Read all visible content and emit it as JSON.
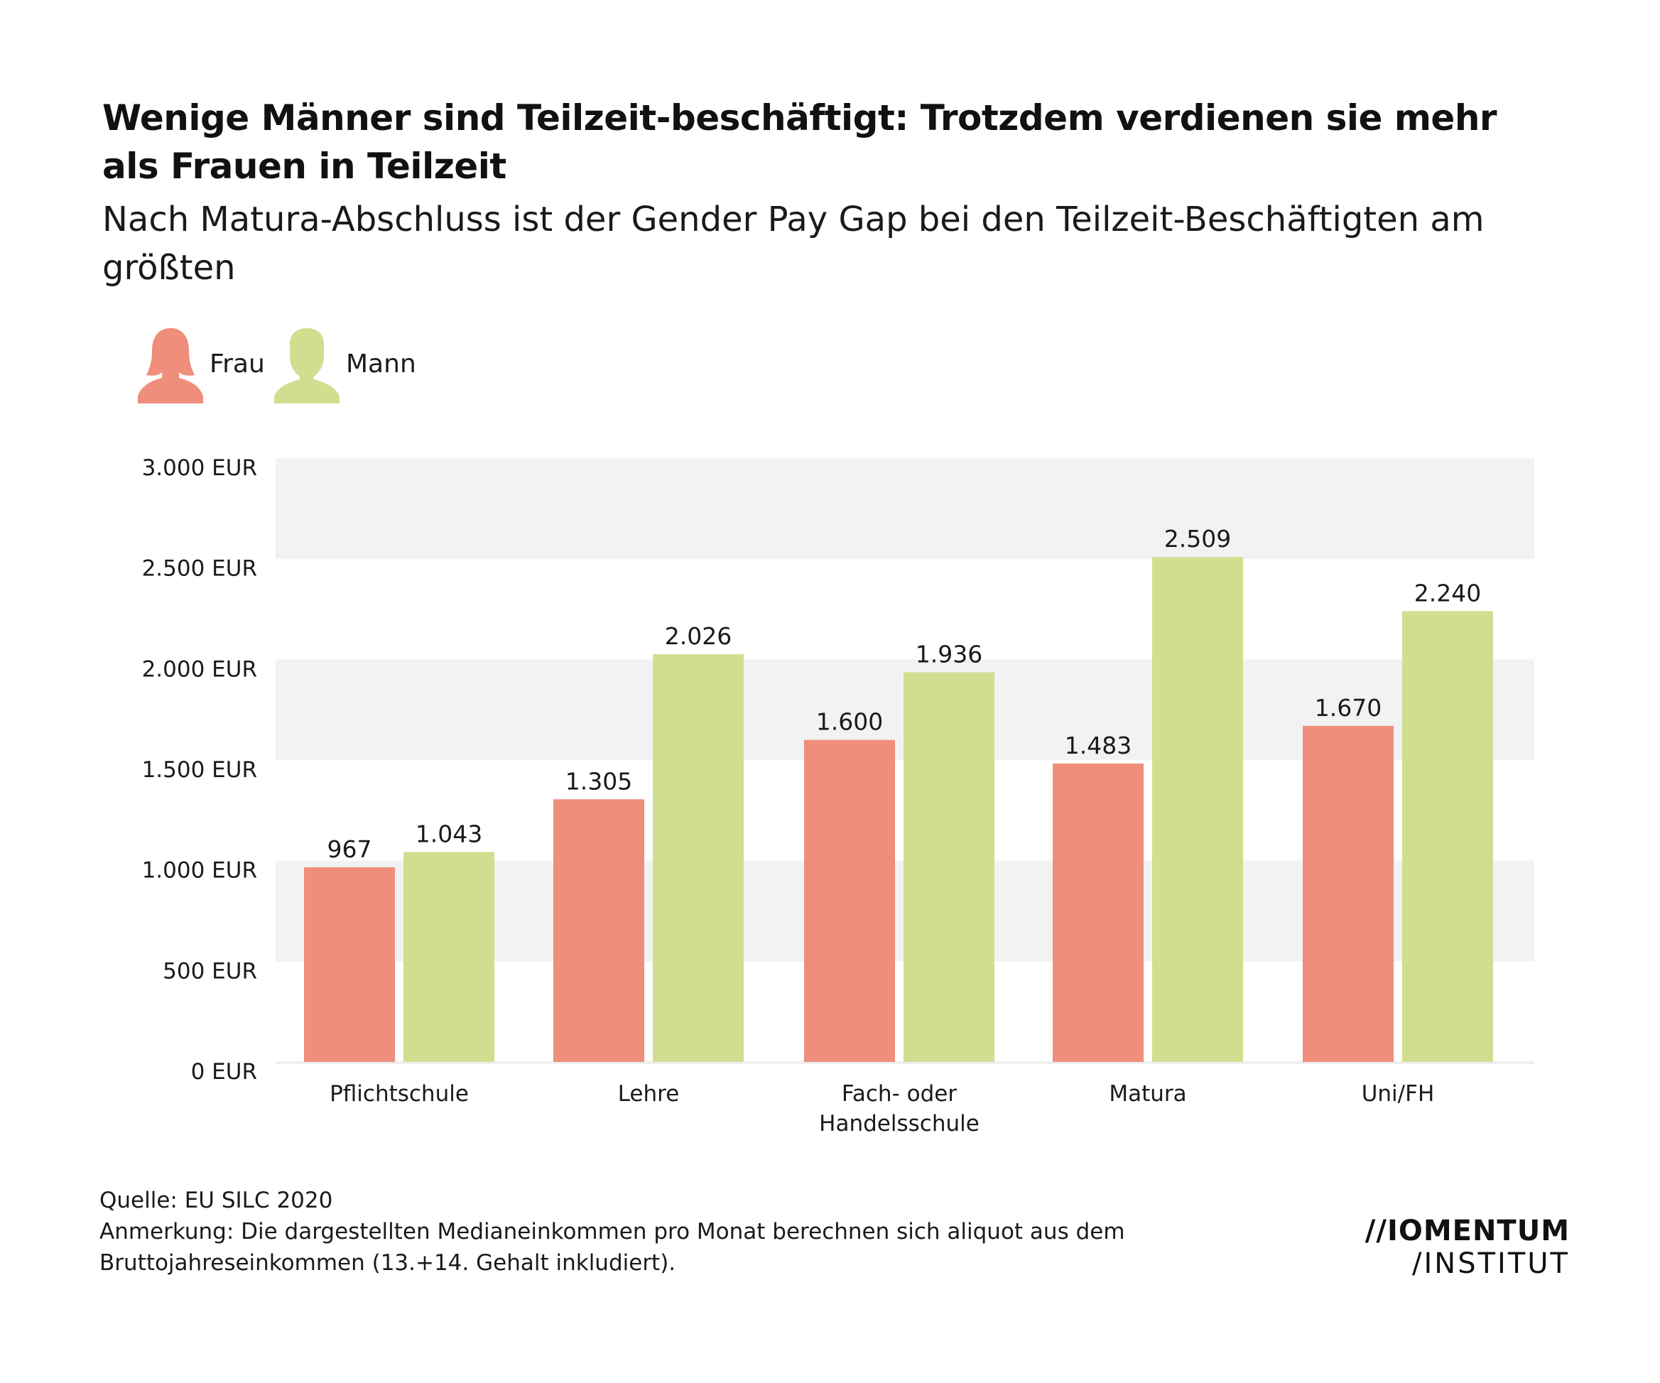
{
  "header": {
    "title": "Wenige Männer sind Teilzeit-beschäftigt: Trotzdem verdienen sie mehr als Frauen in Teilzeit",
    "subtitle": "Nach Matura-Abschluss ist der Gender Pay Gap bei den Teilzeit-Beschäftigten am größten"
  },
  "legend": {
    "items": [
      {
        "label": "Frau",
        "icon": "woman-icon",
        "color": "#EE8E7B"
      },
      {
        "label": "Mann",
        "icon": "man-icon",
        "color": "#D0DE90"
      }
    ]
  },
  "chart_data": {
    "type": "bar",
    "categories": [
      "Pflichtschule",
      "Lehre",
      "Fach- oder Handelsschule",
      "Matura",
      "Uni/FH"
    ],
    "category_lines": [
      [
        "Pflichtschule"
      ],
      [
        "Lehre"
      ],
      [
        "Fach- oder",
        "Handelsschule"
      ],
      [
        "Matura"
      ],
      [
        "Uni/FH"
      ]
    ],
    "series": [
      {
        "name": "Frau",
        "color": "#EE8E7B",
        "values": [
          967,
          1305,
          1600,
          1483,
          1670
        ],
        "labels": [
          "967",
          "1.305",
          "1.600",
          "1.483",
          "1.670"
        ]
      },
      {
        "name": "Mann",
        "color": "#D0DE90",
        "values": [
          1043,
          2026,
          1936,
          2509,
          2240
        ],
        "labels": [
          "1.043",
          "2.026",
          "1.936",
          "2.509",
          "2.240"
        ]
      }
    ],
    "ylim": [
      0,
      3000
    ],
    "yticks": [
      0,
      500,
      1000,
      1500,
      2000,
      2500,
      3000
    ],
    "ytick_labels": [
      "0 EUR",
      "500 EUR",
      "1.000 EUR",
      "1.500 EUR",
      "2.000 EUR",
      "2.500 EUR",
      "3.000 EUR"
    ],
    "grid": "alternating horizontal bands",
    "band_color": "#F2F2F2",
    "legend_position": "top-left"
  },
  "footer": {
    "source": "Quelle: EU SILC 2020",
    "note_line1": "Anmerkung: Die dargestellten Medianeinkommen pro Monat berechnen sich aliquot aus dem",
    "note_line2": "Bruttojahreseinkommen (13.+14. Gehalt inkludiert).",
    "logo_line1": "//IOMENTUM",
    "logo_line2": "/INSTITUT"
  }
}
